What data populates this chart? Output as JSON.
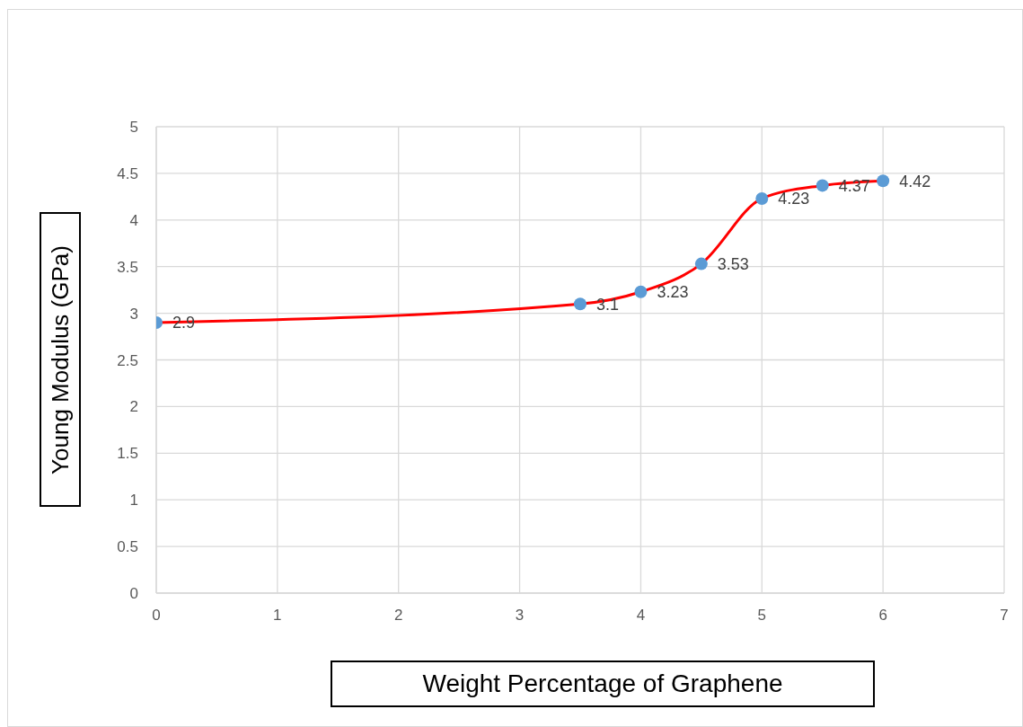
{
  "chart_data": {
    "type": "line",
    "xlabel": "Weight Percentage of Graphene",
    "ylabel": "Young Modulus (GPa)",
    "x": [
      0,
      3.5,
      4,
      4.5,
      5,
      5.5,
      6
    ],
    "series": [
      {
        "color": "#ff0000",
        "values": [
          2.9,
          3.1,
          3.23,
          3.53,
          4.23,
          4.37,
          4.42
        ]
      }
    ],
    "xlim": [
      0,
      7
    ],
    "xticks": [
      0,
      1,
      2,
      3,
      4,
      5,
      6,
      7
    ],
    "ylim": [
      0,
      5
    ],
    "yticks": [
      0,
      0.5,
      1,
      1.5,
      2,
      2.5,
      3,
      3.5,
      4,
      4.5,
      5
    ],
    "grid": true,
    "marker": "circle",
    "line_style": "solid",
    "data_labels": true
  }
}
